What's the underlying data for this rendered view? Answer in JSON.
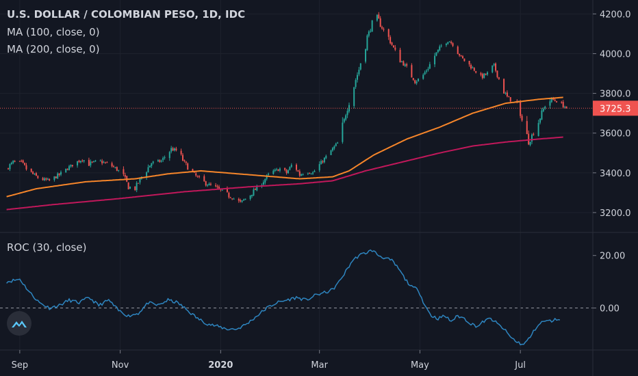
{
  "legend": {
    "title": "U.S. DOLLAR / COLOMBIAN PESO, 1D, IDC",
    "ma100": "MA (100, close, 0)",
    "ma200": "MA (200, close, 0)",
    "roc": "ROC (30, close)"
  },
  "colors": {
    "background": "#131722",
    "up": "#26a69a",
    "down": "#ef5350",
    "ma100": "#f7862a",
    "ma200": "#c2185b",
    "roc": "#2e86c1",
    "grid": "#1e222d",
    "last_price_bg": "#ef5350"
  },
  "last_price": {
    "label": "3725.3",
    "value": 3725.3
  },
  "logo_icon": "tradingview-logo-icon",
  "chart_data": [
    {
      "type": "candlestick",
      "title": "U.S. DOLLAR / COLOMBIAN PESO, 1D, IDC",
      "ylim": [
        3100,
        4270
      ],
      "y_ticks": [
        "3200.0",
        "3400.0",
        "3600.0",
        "3800.0",
        "4000.0",
        "4200.0"
      ],
      "x_ticks": [
        {
          "label": "Sep",
          "bold": false,
          "t": 0
        },
        {
          "label": "Nov",
          "bold": false,
          "t": 61
        },
        {
          "label": "2020",
          "bold": true,
          "t": 122
        },
        {
          "label": "Mar",
          "bold": false,
          "t": 182
        },
        {
          "label": "May",
          "bold": false,
          "t": 243
        },
        {
          "label": "Jul",
          "bold": false,
          "t": 304
        }
      ],
      "close_anchors": [
        [
          -8,
          3420
        ],
        [
          -4,
          3455
        ],
        [
          1,
          3450
        ],
        [
          5,
          3410
        ],
        [
          12,
          3370
        ],
        [
          18,
          3360
        ],
        [
          24,
          3390
        ],
        [
          32,
          3440
        ],
        [
          38,
          3470
        ],
        [
          42,
          3445
        ],
        [
          48,
          3460
        ],
        [
          55,
          3440
        ],
        [
          62,
          3400
        ],
        [
          66,
          3330
        ],
        [
          70,
          3320
        ],
        [
          74,
          3380
        ],
        [
          80,
          3450
        ],
        [
          86,
          3460
        ],
        [
          92,
          3520
        ],
        [
          96,
          3510
        ],
        [
          100,
          3450
        ],
        [
          106,
          3390
        ],
        [
          112,
          3350
        ],
        [
          118,
          3330
        ],
        [
          124,
          3300
        ],
        [
          130,
          3270
        ],
        [
          134,
          3250
        ],
        [
          140,
          3290
        ],
        [
          146,
          3340
        ],
        [
          152,
          3400
        ],
        [
          158,
          3420
        ],
        [
          162,
          3400
        ],
        [
          166,
          3450
        ],
        [
          170,
          3390
        ],
        [
          174,
          3410
        ],
        [
          178,
          3400
        ],
        [
          182,
          3440
        ],
        [
          186,
          3480
        ],
        [
          190,
          3520
        ],
        [
          194,
          3560
        ],
        [
          198,
          3700
        ],
        [
          202,
          3820
        ],
        [
          206,
          3920
        ],
        [
          210,
          4060
        ],
        [
          214,
          4150
        ],
        [
          216,
          4200
        ],
        [
          220,
          4130
        ],
        [
          224,
          4080
        ],
        [
          228,
          4010
        ],
        [
          232,
          3960
        ],
        [
          236,
          3920
        ],
        [
          240,
          3860
        ],
        [
          244,
          3880
        ],
        [
          248,
          3930
        ],
        [
          252,
          3990
        ],
        [
          256,
          4040
        ],
        [
          260,
          4070
        ],
        [
          264,
          4040
        ],
        [
          268,
          3980
        ],
        [
          272,
          3950
        ],
        [
          276,
          3920
        ],
        [
          280,
          3880
        ],
        [
          284,
          3900
        ],
        [
          288,
          3940
        ],
        [
          292,
          3850
        ],
        [
          296,
          3780
        ],
        [
          300,
          3760
        ],
        [
          303,
          3750
        ],
        [
          306,
          3620
        ],
        [
          309,
          3560
        ],
        [
          312,
          3600
        ],
        [
          316,
          3680
        ],
        [
          319,
          3740
        ],
        [
          323,
          3770
        ],
        [
          328,
          3755
        ],
        [
          332,
          3725
        ]
      ],
      "series": [
        {
          "name": "MA (100, close, 0)",
          "anchors": [
            [
              -8,
              3280
            ],
            [
              10,
              3320
            ],
            [
              40,
              3355
            ],
            [
              70,
              3370
            ],
            [
              90,
              3395
            ],
            [
              110,
              3410
            ],
            [
              140,
              3390
            ],
            [
              170,
              3370
            ],
            [
              190,
              3380
            ],
            [
              200,
              3410
            ],
            [
              215,
              3490
            ],
            [
              235,
              3570
            ],
            [
              255,
              3630
            ],
            [
              275,
              3700
            ],
            [
              295,
              3750
            ],
            [
              315,
              3770
            ],
            [
              330,
              3780
            ]
          ]
        },
        {
          "name": "MA (200, close, 0)",
          "anchors": [
            [
              -8,
              3215
            ],
            [
              20,
              3240
            ],
            [
              60,
              3270
            ],
            [
              100,
              3305
            ],
            [
              140,
              3330
            ],
            [
              170,
              3345
            ],
            [
              190,
              3360
            ],
            [
              210,
              3410
            ],
            [
              235,
              3460
            ],
            [
              255,
              3500
            ],
            [
              275,
              3535
            ],
            [
              295,
              3555
            ],
            [
              315,
              3570
            ],
            [
              330,
              3580
            ]
          ]
        }
      ]
    },
    {
      "type": "line",
      "title": "ROC (30, close)",
      "ylim": [
        -16,
        28
      ],
      "y_ticks": [
        "0.00",
        "20.00"
      ],
      "zero_line": 0,
      "series": [
        {
          "name": "ROC (30, close)",
          "anchors": [
            [
              -8,
              10
            ],
            [
              0,
              11
            ],
            [
              6,
              6
            ],
            [
              12,
              2
            ],
            [
              18,
              0
            ],
            [
              24,
              1
            ],
            [
              30,
              3
            ],
            [
              36,
              2
            ],
            [
              42,
              4
            ],
            [
              48,
              1
            ],
            [
              54,
              3
            ],
            [
              60,
              -1
            ],
            [
              66,
              -3
            ],
            [
              72,
              -2
            ],
            [
              78,
              2
            ],
            [
              84,
              1
            ],
            [
              90,
              3
            ],
            [
              96,
              2
            ],
            [
              102,
              -1
            ],
            [
              108,
              -4
            ],
            [
              114,
              -6
            ],
            [
              120,
              -7
            ],
            [
              126,
              -8
            ],
            [
              132,
              -8
            ],
            [
              138,
              -6
            ],
            [
              144,
              -3
            ],
            [
              150,
              0
            ],
            [
              156,
              2
            ],
            [
              162,
              3
            ],
            [
              168,
              4
            ],
            [
              174,
              3
            ],
            [
              180,
              5
            ],
            [
              186,
              6
            ],
            [
              190,
              7
            ],
            [
              194,
              10
            ],
            [
              198,
              14
            ],
            [
              202,
              18
            ],
            [
              206,
              20
            ],
            [
              210,
              21
            ],
            [
              214,
              22
            ],
            [
              218,
              20
            ],
            [
              222,
              19
            ],
            [
              226,
              18
            ],
            [
              230,
              15
            ],
            [
              234,
              11
            ],
            [
              238,
              8
            ],
            [
              242,
              7
            ],
            [
              246,
              1
            ],
            [
              250,
              -3
            ],
            [
              254,
              -4
            ],
            [
              258,
              -3
            ],
            [
              262,
              -5
            ],
            [
              266,
              -3
            ],
            [
              270,
              -4
            ],
            [
              274,
              -6
            ],
            [
              278,
              -7
            ],
            [
              282,
              -5
            ],
            [
              286,
              -4
            ],
            [
              290,
              -6
            ],
            [
              294,
              -8
            ],
            [
              298,
              -11
            ],
            [
              302,
              -13
            ],
            [
              306,
              -14
            ],
            [
              310,
              -11
            ],
            [
              314,
              -7
            ],
            [
              318,
              -5
            ],
            [
              322,
              -5
            ],
            [
              328,
              -4
            ]
          ]
        }
      ]
    }
  ]
}
